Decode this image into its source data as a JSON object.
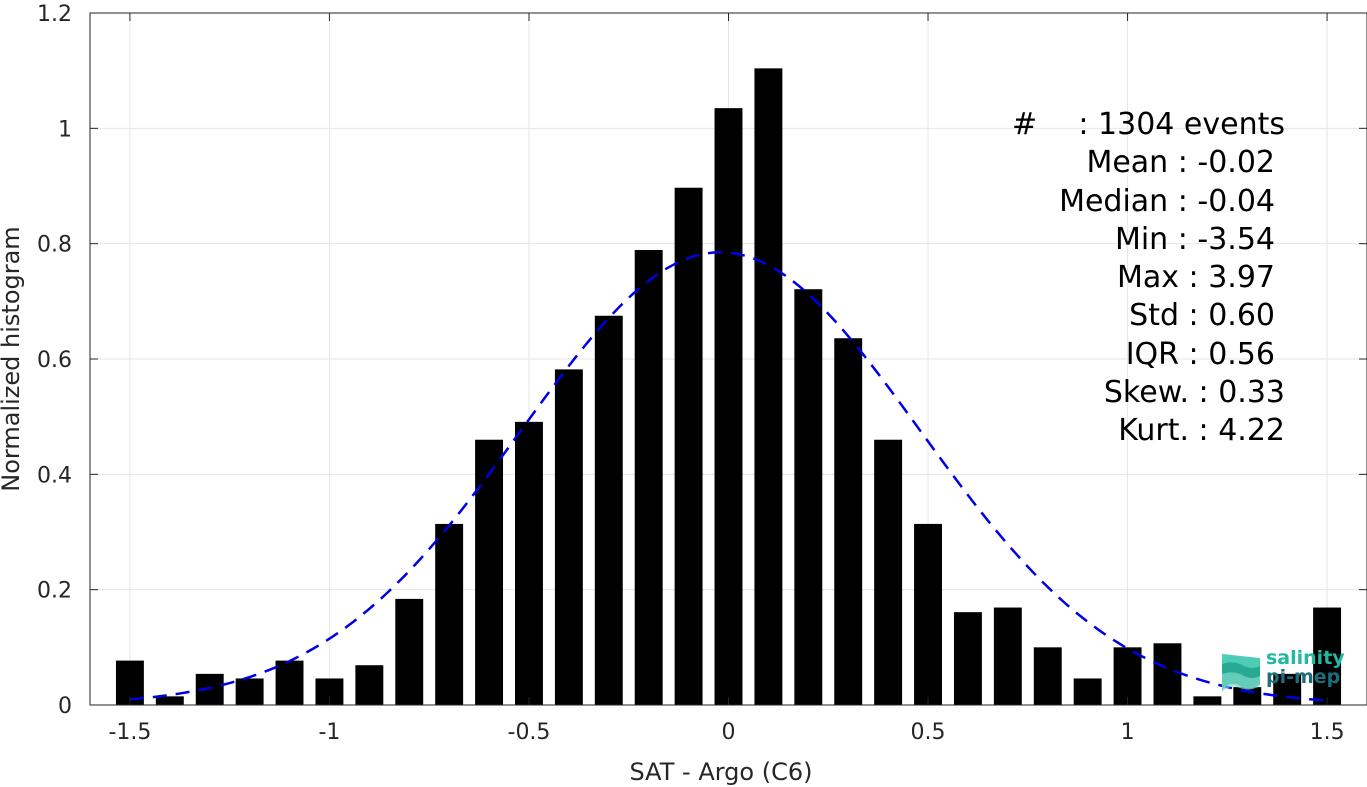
{
  "chart_data": {
    "type": "bar",
    "xlabel": "SAT - Argo (C6)",
    "ylabel": "Normalized histogram",
    "xlim": [
      -1.6,
      1.6
    ],
    "ylim": [
      0,
      1.2
    ],
    "xticks": [
      "-1.5",
      "-1",
      "-0.5",
      "0",
      "0.5",
      "1",
      "1.5"
    ],
    "yticks": [
      "0",
      "0.2",
      "0.4",
      "0.6",
      "0.8",
      "1",
      "1.2"
    ],
    "grid": true,
    "bar_color": "#000000",
    "x": [
      -1.5,
      -1.4,
      -1.3,
      -1.2,
      -1.1,
      -1.0,
      -0.9,
      -0.8,
      -0.7,
      -0.6,
      -0.5,
      -0.4,
      -0.3,
      -0.2,
      -0.1,
      0.0,
      0.1,
      0.2,
      0.3,
      0.4,
      0.5,
      0.6,
      0.7,
      0.8,
      0.9,
      1.0,
      1.1,
      1.2,
      1.3,
      1.4,
      1.5
    ],
    "values": [
      0.077,
      0.015,
      0.054,
      0.046,
      0.077,
      0.046,
      0.069,
      0.184,
      0.314,
      0.46,
      0.491,
      0.582,
      0.675,
      0.789,
      0.897,
      1.035,
      1.104,
      0.721,
      0.636,
      0.46,
      0.314,
      0.161,
      0.169,
      0.1,
      0.046,
      0.1,
      0.107,
      0.015,
      0.031,
      0.054,
      0.169
    ],
    "fit": {
      "type": "normal",
      "mean": -0.02,
      "std": 0.5,
      "peak": 0.785,
      "color": "#0000e6",
      "style": "dashed"
    },
    "stats": {
      "count_symbol": "#",
      "count_text": ": 1304 events",
      "lines": [
        "Mean : -0.02",
        "Median : -0.04",
        "Min : -3.54",
        "Max : 3.97",
        "Std : 0.60",
        "IQR : 0.56",
        "Skew. : 0.33",
        "Kurt. : 4.22"
      ]
    }
  },
  "logo": {
    "line1": "salinity",
    "line2": "pi-mep",
    "color1": "#22b8a2",
    "color2": "#1c6e7d"
  }
}
